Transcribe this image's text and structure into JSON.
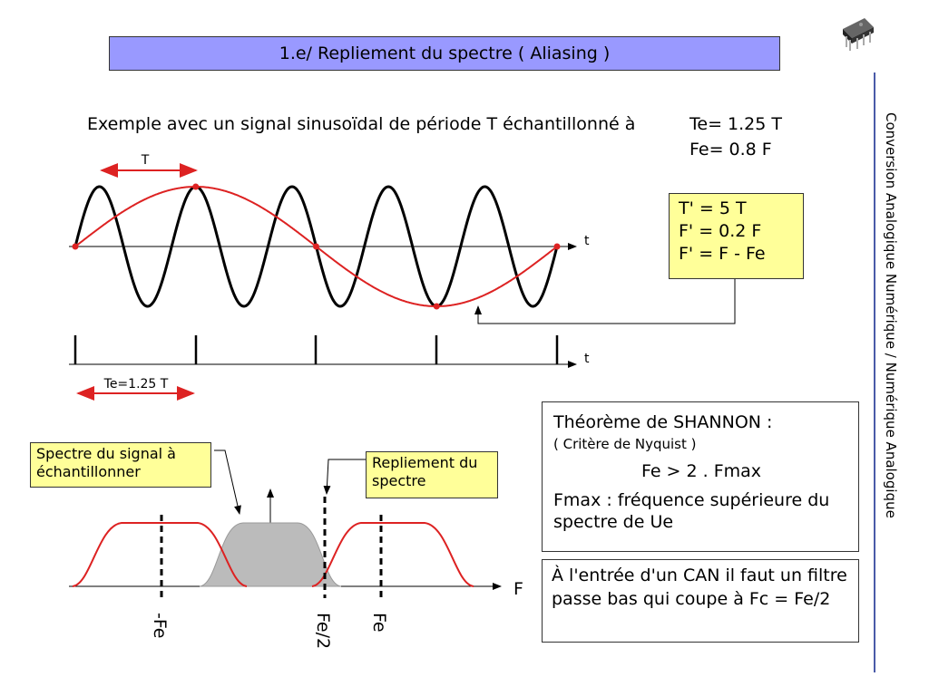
{
  "title": "1.e/  Repliement du spectre ( Aliasing )",
  "side_title": "Conversion Analogique Numérique / Numérique Analogique",
  "intro": {
    "text": "Exemple avec un signal sinusoïdal de période T échantillonné à",
    "te": "Te= 1.25 T",
    "fe": "Fe= 0.8 F"
  },
  "signal_plot": {
    "period_label": "T",
    "axis_label": "t",
    "sample_axis_label": "t",
    "te_label": "Te=1.25 T",
    "signal_color": "#000000",
    "alias_color": "#dd2222"
  },
  "result_box": {
    "line1": "T' = 5 T",
    "line2": "F' = 0.2 F",
    "line3": "F' = F - Fe",
    "background": "#ffff99"
  },
  "shannon_box": {
    "heading": "Théorème de SHANNON :",
    "subheading": "( Critère de Nyquist )",
    "formula": "Fe > 2 . Fmax",
    "note": "Fmax : fréquence supérieure du spectre de Ue"
  },
  "can_box": {
    "text": "À l'entrée d'un CAN il faut un filtre passe bas qui coupe à Fc = Fe/2"
  },
  "spectrum": {
    "spectre_label": "Spectre du signal à échantillonner",
    "repliement_label": "Repliement du spectre",
    "axis_label": "F",
    "tick_neg_fe": "-Fe",
    "tick_fe_half": "Fe/2",
    "tick_fe": "Fe",
    "base_fill": "#bbbbbb",
    "replica_color": "#dd2222"
  },
  "colors": {
    "title_bg": "#9999ff",
    "side_line": "#4a5aa8"
  },
  "chip_icon": "ic-chip-icon"
}
